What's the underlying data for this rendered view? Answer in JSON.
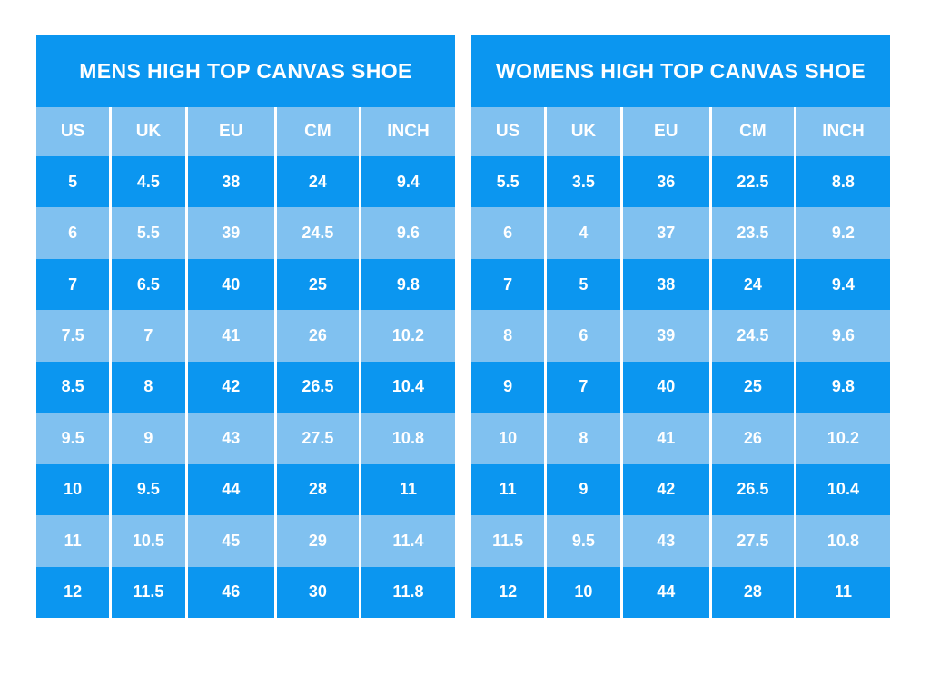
{
  "colors": {
    "row_dark": "#0b96f0",
    "row_light": "#80c1f0",
    "separator": "#ffffff",
    "text": "#ffffff",
    "background": "#ffffff"
  },
  "chart_data": [
    {
      "type": "table",
      "title": "MENS HIGH TOP CANVAS SHOE",
      "columns": [
        "US",
        "UK",
        "EU",
        "CM",
        "INCH"
      ],
      "rows": [
        [
          "5",
          "4.5",
          "38",
          "24",
          "9.4"
        ],
        [
          "6",
          "5.5",
          "39",
          "24.5",
          "9.6"
        ],
        [
          "7",
          "6.5",
          "40",
          "25",
          "9.8"
        ],
        [
          "7.5",
          "7",
          "41",
          "26",
          "10.2"
        ],
        [
          "8.5",
          "8",
          "42",
          "26.5",
          "10.4"
        ],
        [
          "9.5",
          "9",
          "43",
          "27.5",
          "10.8"
        ],
        [
          "10",
          "9.5",
          "44",
          "28",
          "11"
        ],
        [
          "11",
          "10.5",
          "45",
          "29",
          "11.4"
        ],
        [
          "12",
          "11.5",
          "46",
          "30",
          "11.8"
        ]
      ]
    },
    {
      "type": "table",
      "title": "WOMENS HIGH TOP CANVAS SHOE",
      "columns": [
        "US",
        "UK",
        "EU",
        "CM",
        "INCH"
      ],
      "rows": [
        [
          "5.5",
          "3.5",
          "36",
          "22.5",
          "8.8"
        ],
        [
          "6",
          "4",
          "37",
          "23.5",
          "9.2"
        ],
        [
          "7",
          "5",
          "38",
          "24",
          "9.4"
        ],
        [
          "8",
          "6",
          "39",
          "24.5",
          "9.6"
        ],
        [
          "9",
          "7",
          "40",
          "25",
          "9.8"
        ],
        [
          "10",
          "8",
          "41",
          "26",
          "10.2"
        ],
        [
          "11",
          "9",
          "42",
          "26.5",
          "10.4"
        ],
        [
          "11.5",
          "9.5",
          "43",
          "27.5",
          "10.8"
        ],
        [
          "12",
          "10",
          "44",
          "28",
          "11"
        ]
      ]
    }
  ]
}
